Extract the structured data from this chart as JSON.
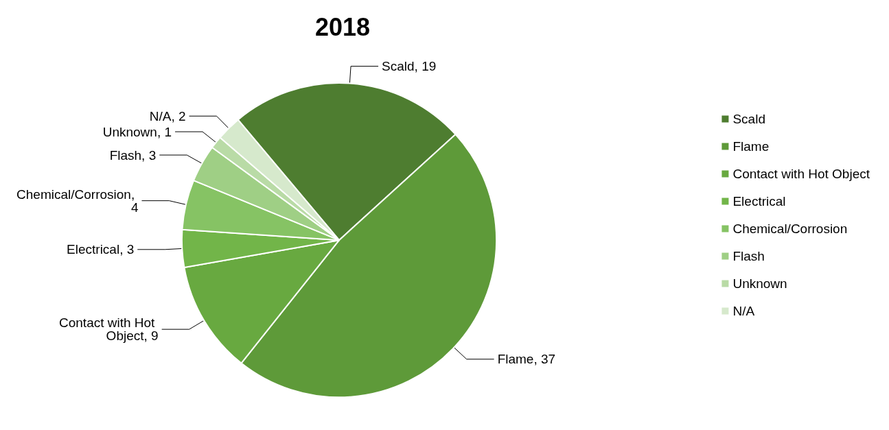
{
  "chart_data": {
    "type": "pie",
    "title": "2018",
    "categories": [
      "Scald",
      "Flame",
      "Contact with Hot Object",
      "Electrical",
      "Chemical/Corrosion",
      "Flash",
      "Unknown",
      "N/A"
    ],
    "values": [
      19,
      37,
      9,
      3,
      4,
      3,
      1,
      2
    ],
    "colors": [
      "#4e7d30",
      "#5e9a39",
      "#68a940",
      "#72b549",
      "#86c364",
      "#9fcf85",
      "#b9dba6",
      "#d6e9cc"
    ],
    "value_labels": [
      "Scald, 19",
      "Flame, 37",
      "Contact with Hot Object, 9",
      "Electrical, 3",
      "Chemical/Corrosion, 4",
      "Flash, 3",
      "Unknown, 1",
      "N/A, 2"
    ],
    "legend": "right"
  }
}
